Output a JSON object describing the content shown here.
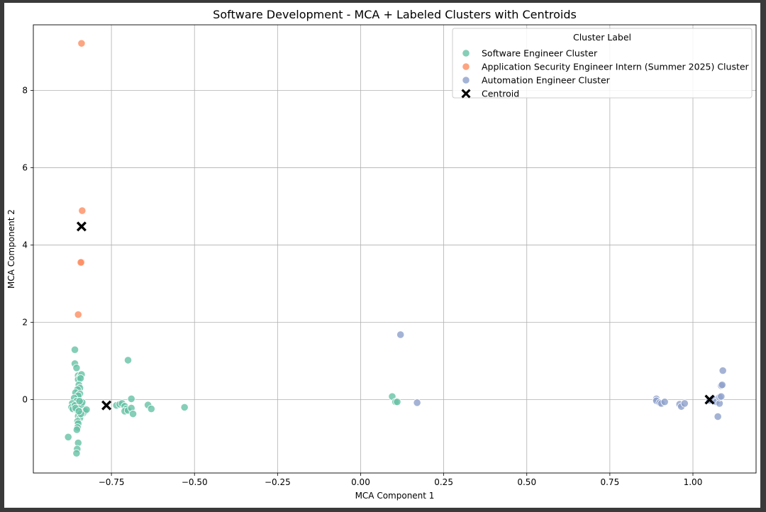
{
  "chart_data": {
    "type": "scatter",
    "title": "Software Development - MCA + Labeled Clusters with Centroids",
    "xlabel": "MCA Component 1",
    "ylabel": "MCA Component 2",
    "xlim": [
      -0.985,
      1.19
    ],
    "ylim": [
      -1.9,
      9.7
    ],
    "grid": true,
    "x_ticks": [
      -0.75,
      -0.5,
      -0.25,
      0.0,
      0.25,
      0.5,
      0.75,
      1.0
    ],
    "x_tick_labels": [
      "−0.75",
      "−0.50",
      "−0.25",
      "0.00",
      "0.25",
      "0.50",
      "0.75",
      "1.00"
    ],
    "y_ticks": [
      0,
      2,
      4,
      6,
      8
    ],
    "y_tick_labels": [
      "0",
      "2",
      "4",
      "6",
      "8"
    ],
    "legend": {
      "title": "Cluster Label",
      "position": "top-right",
      "entries": [
        {
          "label": "Software Engineer Cluster",
          "marker": "circle",
          "color": "#66c2a5"
        },
        {
          "label": "Application Security Engineer Intern (Summer 2025) Cluster",
          "marker": "circle",
          "color": "#fc8d62"
        },
        {
          "label": "Automation Engineer Cluster",
          "marker": "circle",
          "color": "#8da0cb"
        },
        {
          "label": "Centroid",
          "marker": "x",
          "color": "#000000"
        }
      ]
    },
    "series": [
      {
        "name": "Software Engineer Cluster",
        "color": "#66c2a5",
        "points": [
          [
            -0.88,
            -0.97
          ],
          [
            -0.86,
            1.29
          ],
          [
            -0.86,
            0.93
          ],
          [
            -0.855,
            0.82
          ],
          [
            -0.85,
            0.62
          ],
          [
            -0.845,
            0.58
          ],
          [
            -0.84,
            0.65
          ],
          [
            -0.85,
            0.52
          ],
          [
            -0.843,
            0.55
          ],
          [
            -0.848,
            0.38
          ],
          [
            -0.845,
            0.3
          ],
          [
            -0.852,
            0.26
          ],
          [
            -0.858,
            0.18
          ],
          [
            -0.845,
            0.15
          ],
          [
            -0.85,
            0.1
          ],
          [
            -0.862,
            0.04
          ],
          [
            -0.855,
            -0.04
          ],
          [
            -0.868,
            -0.1
          ],
          [
            -0.87,
            -0.2
          ],
          [
            -0.866,
            -0.24
          ],
          [
            -0.86,
            -0.15
          ],
          [
            -0.855,
            -0.26
          ],
          [
            -0.85,
            -0.32
          ],
          [
            -0.845,
            -0.28
          ],
          [
            -0.84,
            -0.21
          ],
          [
            -0.835,
            -0.35
          ],
          [
            -0.83,
            -0.3
          ],
          [
            -0.825,
            -0.26
          ],
          [
            -0.84,
            -0.12
          ],
          [
            -0.838,
            -0.07
          ],
          [
            -0.846,
            -0.04
          ],
          [
            -0.85,
            -0.43
          ],
          [
            -0.845,
            -0.48
          ],
          [
            -0.852,
            -0.56
          ],
          [
            -0.85,
            -0.62
          ],
          [
            -0.852,
            -0.72
          ],
          [
            -0.854,
            -0.78
          ],
          [
            -0.85,
            -1.12
          ],
          [
            -0.853,
            -1.28
          ],
          [
            -0.855,
            -1.39
          ],
          [
            -0.858,
            -0.22
          ],
          [
            -0.842,
            -0.37
          ],
          [
            -0.848,
            -0.3
          ],
          [
            -0.735,
            -0.15
          ],
          [
            -0.725,
            -0.12
          ],
          [
            -0.718,
            -0.1
          ],
          [
            -0.71,
            -0.17
          ],
          [
            -0.705,
            -0.24
          ],
          [
            -0.71,
            -0.3
          ],
          [
            -0.7,
            -0.28
          ],
          [
            -0.69,
            -0.22
          ],
          [
            -0.685,
            -0.37
          ],
          [
            -0.69,
            0.02
          ],
          [
            -0.7,
            1.02
          ],
          [
            -0.64,
            -0.14
          ],
          [
            -0.63,
            -0.24
          ],
          [
            -0.53,
            -0.2
          ],
          [
            0.095,
            0.08
          ],
          [
            0.105,
            -0.06
          ],
          [
            0.11,
            -0.06
          ]
        ]
      },
      {
        "name": "Application Security Engineer Intern (Summer 2025) Cluster",
        "color": "#fc8d62",
        "points": [
          [
            -0.84,
            9.22
          ],
          [
            -0.838,
            4.89
          ],
          [
            -0.84,
            3.56
          ],
          [
            -0.842,
            3.55
          ],
          [
            -0.85,
            2.2
          ]
        ]
      },
      {
        "name": "Automation Engineer Cluster",
        "color": "#8da0cb",
        "points": [
          [
            0.12,
            1.68
          ],
          [
            0.17,
            -0.08
          ],
          [
            0.89,
            0.02
          ],
          [
            0.89,
            -0.03
          ],
          [
            0.9,
            -0.08
          ],
          [
            0.905,
            -0.1
          ],
          [
            0.915,
            -0.06
          ],
          [
            0.96,
            -0.12
          ],
          [
            0.965,
            -0.18
          ],
          [
            0.975,
            -0.1
          ],
          [
            1.05,
            -0.02
          ],
          [
            1.06,
            0.02
          ],
          [
            1.07,
            -0.06
          ],
          [
            1.075,
            -0.44
          ],
          [
            1.08,
            -0.1
          ],
          [
            1.08,
            0.06
          ],
          [
            1.085,
            0.08
          ],
          [
            1.085,
            0.36
          ],
          [
            1.088,
            0.38
          ],
          [
            1.09,
            0.75
          ]
        ]
      }
    ],
    "centroids": [
      {
        "cluster": "Software Engineer Cluster",
        "x": -0.765,
        "y": -0.15
      },
      {
        "cluster": "Application Security Engineer Intern (Summer 2025) Cluster",
        "x": -0.84,
        "y": 4.48
      },
      {
        "cluster": "Automation Engineer Cluster",
        "x": 1.05,
        "y": 0.0
      }
    ]
  }
}
